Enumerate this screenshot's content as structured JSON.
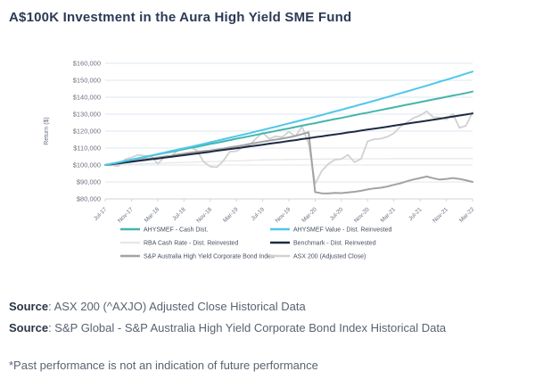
{
  "page": {
    "title": "A$100K Investment in the Aura High Yield SME Fund",
    "sources": [
      {
        "label": "Source",
        "text": ": ASX 200 (^AXJO) Adjusted Close Historical Data"
      },
      {
        "label": "Source",
        "text": ": S&P Global - S&P Australia High Yield Corporate Bond Index Historical Data"
      }
    ],
    "disclaimer": "*Past performance is not an indication of future performance"
  },
  "colors": {
    "title_text": "#2b3a55",
    "body_text": "#5a6372",
    "grid_line": "#dde7f1",
    "axis_line": "#d3d3d3",
    "tick_text": "#6b7280",
    "legend_text": "#454f5e"
  },
  "chart_data": {
    "type": "line",
    "title": "",
    "xlabel": "",
    "ylabel": "Return ($)",
    "ylim": [
      80000,
      160000
    ],
    "y_ticks": [
      80000,
      90000,
      100000,
      110000,
      120000,
      130000,
      140000,
      150000,
      160000
    ],
    "x_ticks": [
      "Jul-17",
      "Nov-17",
      "Mar-18",
      "Jul-18",
      "Nov-18",
      "Mar-19",
      "Jul-19",
      "Nov-19",
      "Mar-20",
      "Jul-20",
      "Nov-20",
      "Mar-21",
      "Jul-21",
      "Nov-21",
      "Mar-22"
    ],
    "x_tick_month_index": [
      0,
      4,
      8,
      12,
      16,
      20,
      24,
      28,
      32,
      36,
      40,
      44,
      48,
      52,
      56
    ],
    "x_start": "Jul-17",
    "x_end": "Mar-22",
    "x_interval": "monthly",
    "n_points": 57,
    "grid": true,
    "legend_position": "bottom",
    "unit": "values are A$ thousands",
    "series": [
      {
        "name": "AHYSMEF - Cash Dist.",
        "color": "#45b5ab",
        "width": 2,
        "values_k": [
          100.0,
          100.8,
          101.5,
          102.3,
          103.1,
          103.9,
          104.6,
          105.4,
          106.2,
          107.0,
          107.7,
          108.5,
          109.3,
          110.1,
          110.8,
          111.6,
          112.4,
          113.1,
          113.9,
          114.7,
          115.5,
          116.2,
          117.0,
          117.8,
          118.6,
          119.3,
          120.1,
          120.9,
          121.6,
          122.4,
          123.2,
          124.0,
          124.7,
          125.5,
          126.3,
          127.1,
          127.8,
          128.6,
          129.4,
          130.2,
          130.9,
          131.7,
          132.5,
          133.2,
          134.0,
          134.8,
          135.6,
          136.3,
          137.1,
          137.9,
          138.7,
          139.4,
          140.2,
          141.0,
          141.7,
          142.5,
          143.3
        ]
      },
      {
        "name": "AHYSMEF Value - Dist. Reinvested",
        "color": "#4fc7ea",
        "width": 2,
        "values_k": [
          100.0,
          100.8,
          101.6,
          102.4,
          103.2,
          104.0,
          104.8,
          105.6,
          106.5,
          107.3,
          108.2,
          109.0,
          109.9,
          110.7,
          111.6,
          112.5,
          113.4,
          114.3,
          115.2,
          116.1,
          117.0,
          117.9,
          118.8,
          119.8,
          120.7,
          121.7,
          122.6,
          123.6,
          124.6,
          125.5,
          126.5,
          127.5,
          128.5,
          129.5,
          130.6,
          131.6,
          132.6,
          133.7,
          134.7,
          135.8,
          136.8,
          137.9,
          139.0,
          140.1,
          141.2,
          142.3,
          143.4,
          144.6,
          145.7,
          146.8,
          148.0,
          149.2,
          150.3,
          151.5,
          152.7,
          153.9,
          155.1
        ]
      },
      {
        "name": "RBA Cash Rate - Dist. Reinvested",
        "color": "#e7e7e7",
        "width": 1.3,
        "values_k": [
          100.0,
          100.1,
          100.3,
          100.4,
          100.5,
          100.6,
          100.8,
          100.9,
          101.0,
          101.1,
          101.3,
          101.4,
          101.5,
          101.6,
          101.8,
          101.9,
          102.0,
          102.1,
          102.3,
          102.4,
          102.5,
          102.6,
          102.8,
          102.9,
          103.0,
          103.1,
          103.1,
          103.2,
          103.3,
          103.3,
          103.4,
          103.4,
          103.5,
          103.5,
          103.5,
          103.6,
          103.6,
          103.6,
          103.6,
          103.7,
          103.7,
          103.7,
          103.7,
          103.7,
          103.8,
          103.8,
          103.8,
          103.8,
          103.8,
          103.8,
          103.8,
          103.8,
          103.8,
          103.8,
          103.8,
          103.8,
          103.8
        ]
      },
      {
        "name": "Benchmark - Dist. Reinvested",
        "color": "#1e2a44",
        "width": 2,
        "values_k": [
          100.0,
          100.5,
          100.9,
          101.4,
          101.9,
          102.4,
          102.9,
          103.4,
          103.8,
          104.3,
          104.8,
          105.3,
          105.8,
          106.3,
          106.8,
          107.3,
          107.8,
          108.4,
          108.9,
          109.4,
          109.9,
          110.4,
          111.0,
          111.5,
          112.0,
          112.6,
          113.1,
          113.6,
          114.2,
          114.7,
          115.3,
          115.8,
          116.4,
          116.9,
          117.5,
          118.0,
          118.6,
          119.2,
          119.7,
          120.3,
          120.9,
          121.4,
          122.0,
          122.6,
          123.2,
          123.8,
          124.4,
          125.0,
          125.5,
          126.1,
          126.7,
          127.3,
          128.0,
          128.6,
          129.2,
          129.8,
          130.4
        ]
      },
      {
        "name": "S&P Australia High Yield Corporate Bond Index",
        "color": "#a3a3a3",
        "width": 2,
        "values_k": [
          100.0,
          100.5,
          101.0,
          101.6,
          102.2,
          102.8,
          103.4,
          103.9,
          104.4,
          105.0,
          105.5,
          106.1,
          106.7,
          107.3,
          107.8,
          108.2,
          108.6,
          109.1,
          109.7,
          110.4,
          111.0,
          111.7,
          112.4,
          113.1,
          113.8,
          114.4,
          115.0,
          115.6,
          116.3,
          117.2,
          118.2,
          119.3,
          84.0,
          83.3,
          83.2,
          83.5,
          83.4,
          83.8,
          84.2,
          84.8,
          85.6,
          86.2,
          86.6,
          87.3,
          88.3,
          89.2,
          90.4,
          91.5,
          92.3,
          93.2,
          92.2,
          91.4,
          91.8,
          92.3,
          91.8,
          91.0,
          90.0
        ]
      },
      {
        "name": "ASX 200 (Adjusted Close)",
        "color": "#d1d1d1",
        "width": 1.8,
        "values_k": [
          100.0,
          99.9,
          99.3,
          103.3,
          104.4,
          106.0,
          105.5,
          105.2,
          100.7,
          104.6,
          105.1,
          108.3,
          109.8,
          110.5,
          108.5,
          101.9,
          99.1,
          98.7,
          102.5,
          107.9,
          108.1,
          110.6,
          111.8,
          115.7,
          119.1,
          115.5,
          116.9,
          116.5,
          119.7,
          116.9,
          122.7,
          112.6,
          88.8,
          96.5,
          100.6,
          103.1,
          103.6,
          106.0,
          101.7,
          103.6,
          114.0,
          115.2,
          115.5,
          116.7,
          118.7,
          122.8,
          125.2,
          127.8,
          129.2,
          131.7,
          128.2,
          128.0,
          126.9,
          130.2,
          121.9,
          123.2,
          131.1
        ]
      }
    ],
    "draw_order": [
      2,
      5,
      4,
      3,
      0,
      1
    ]
  }
}
